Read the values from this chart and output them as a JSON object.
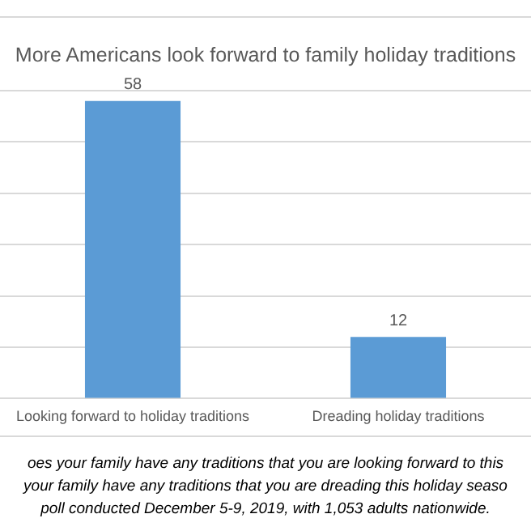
{
  "chart_data": {
    "type": "bar",
    "title": "More Americans look forward to family holiday traditions",
    "categories": [
      "Looking forward to holiday traditions",
      "Dreading holiday traditions"
    ],
    "values": [
      58,
      12
    ],
    "color": "#5b9bd5",
    "data_labels": true,
    "tick_labels": "x",
    "grid": "y",
    "legend": false,
    "annotations": [
      "oes your family have any traditions that you are looking forward to this",
      "your family have any traditions that you are dreading this holiday seaso",
      "poll conducted December 5-9, 2019, with 1,053 adults nationwide."
    ]
  }
}
